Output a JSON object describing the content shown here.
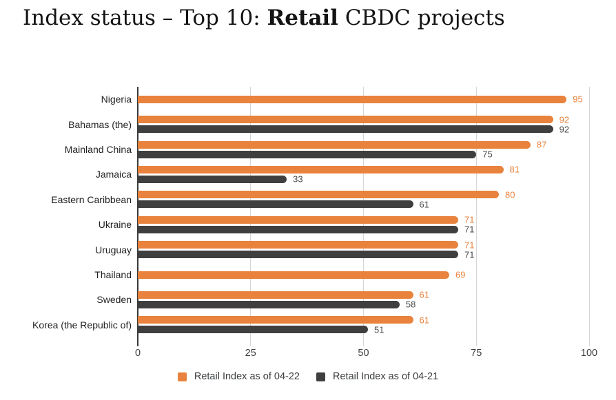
{
  "title": {
    "prefix": "Index status – Top 10: ",
    "bold": "Retail",
    "suffix": " CBDC projects"
  },
  "chart_data": {
    "type": "bar",
    "orientation": "horizontal",
    "title": "Index status – Top 10: Retail CBDC projects",
    "categories": [
      "Nigeria",
      "Bahamas (the)",
      "Mainland China",
      "Jamaica",
      "Eastern Caribbean",
      "Ukraine",
      "Uruguay",
      "Thailand",
      "Sweden",
      "Korea (the Republic of)"
    ],
    "series": [
      {
        "name": "Retail Index as of 04-22",
        "color": "#e8823c",
        "label_color": "#e8823c",
        "values": [
          95,
          92,
          87,
          81,
          80,
          71,
          71,
          69,
          61,
          61
        ]
      },
      {
        "name": "Retail Index as of 04-21",
        "color": "#3f3f3f",
        "label_color": "#4a4a4a",
        "values": [
          null,
          92,
          75,
          33,
          61,
          71,
          71,
          null,
          58,
          51
        ]
      }
    ],
    "xlabel": "",
    "ylabel": "",
    "xlim": [
      0,
      100
    ],
    "x_ticks": [
      0,
      25,
      50,
      75,
      100
    ],
    "grid": "vertical-gridlines",
    "gridline_color": "#d6d6d6",
    "axis_color": "#3a3a3a",
    "bar_value_labels": true,
    "legend_position": "bottom"
  }
}
